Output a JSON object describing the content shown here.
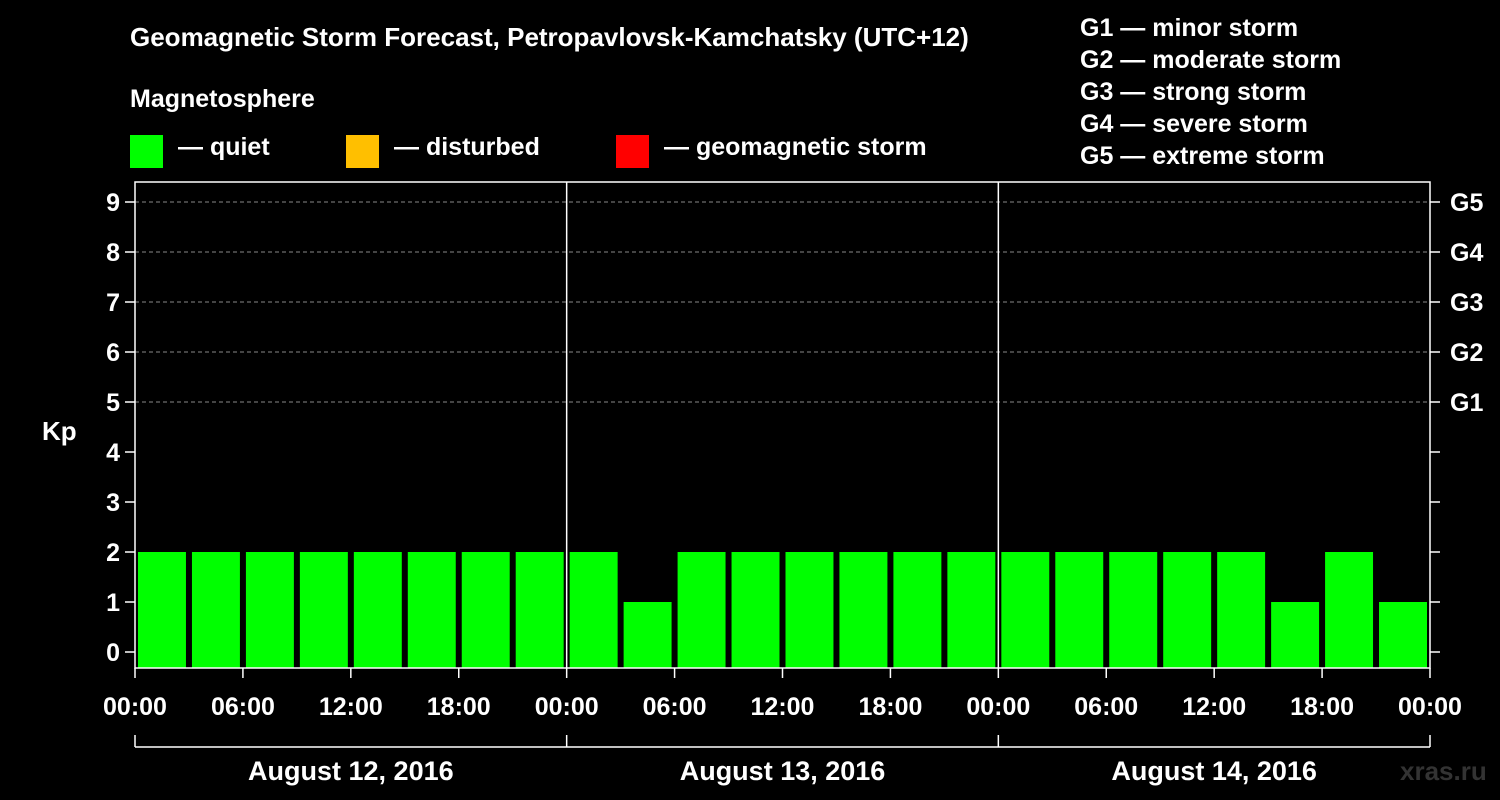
{
  "colors": {
    "quiet": "#00ff00",
    "disturbed": "#ffbf00",
    "storm": "#ff0000",
    "background": "#000000",
    "grid": "#888888"
  },
  "legend": {
    "heading": "Magnetosphere",
    "items": [
      {
        "label": "— quiet",
        "color": "#00ff00"
      },
      {
        "label": "— disturbed",
        "color": "#ffbf00"
      },
      {
        "label": "— geomagnetic storm",
        "color": "#ff0000"
      }
    ]
  },
  "storm_scale": [
    "G1 — minor storm",
    "G2 — moderate storm",
    "G3 — strong storm",
    "G4 — severe storm",
    "G5 — extreme storm"
  ],
  "watermark": "xras.ru",
  "chart_data": {
    "type": "bar",
    "title": "Geomagnetic Storm Forecast, Petropavlovsk-Kamchatsky (UTC+12)",
    "ylabel": "Kp",
    "xlabel": "",
    "ylim": [
      0,
      9
    ],
    "y_ticks": [
      "0",
      "1",
      "2",
      "3",
      "4",
      "5",
      "6",
      "7",
      "8",
      "9"
    ],
    "right_axis_labels": [
      {
        "kp": 5,
        "label": "G1"
      },
      {
        "kp": 6,
        "label": "G2"
      },
      {
        "kp": 7,
        "label": "G3"
      },
      {
        "kp": 8,
        "label": "G4"
      },
      {
        "kp": 9,
        "label": "G5"
      }
    ],
    "x_tick_labels": [
      "00:00",
      "06:00",
      "12:00",
      "18:00",
      "00:00",
      "06:00",
      "12:00",
      "18:00",
      "00:00",
      "06:00",
      "12:00",
      "18:00",
      "00:00"
    ],
    "days": [
      "August 12, 2016",
      "August 13, 2016",
      "August 14, 2016"
    ],
    "interval_hours": 3,
    "values": [
      2,
      2,
      2,
      2,
      2,
      2,
      2,
      2,
      2,
      1,
      2,
      2,
      2,
      2,
      2,
      2,
      2,
      2,
      2,
      2,
      2,
      1,
      2,
      1
    ],
    "grid": "dashed horizontal at Kp 5-9"
  }
}
